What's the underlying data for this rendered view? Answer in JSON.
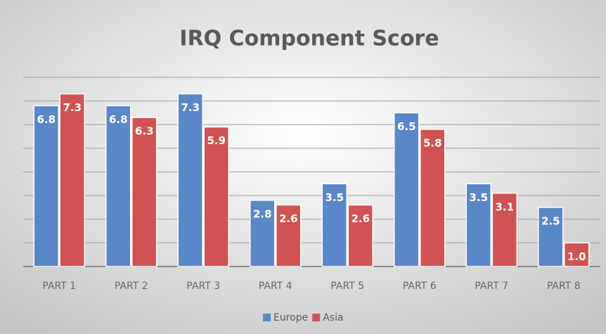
{
  "chart_data": {
    "type": "bar",
    "title": "IRQ  Component Score",
    "categories": [
      "PART 1",
      "PART 2",
      "PART 3",
      "PART 4",
      "PART 5",
      "PART 6",
      "PART 7",
      "PART 8"
    ],
    "series": [
      {
        "name": "Europe",
        "color": "#5a87c8",
        "values": [
          6.8,
          6.8,
          7.3,
          2.8,
          3.5,
          6.5,
          3.5,
          2.5
        ],
        "value_labels": [
          "6.8",
          "6.8",
          "7.3",
          "2.8",
          "3.5",
          "6.5",
          "3.5",
          "2.5"
        ]
      },
      {
        "name": "Asia",
        "color": "#d05252",
        "values": [
          7.3,
          6.3,
          5.9,
          2.6,
          2.6,
          5.8,
          3.1,
          1.0
        ],
        "value_labels": [
          "7.3",
          "6.3",
          "5.9",
          "2.6",
          "2.6",
          "5.8",
          "3.1",
          "1.0"
        ]
      }
    ],
    "ylim": [
      0,
      8
    ],
    "yticks": [
      0,
      1,
      2,
      3,
      4,
      5,
      6,
      7,
      8
    ],
    "grid": true,
    "legend": "bottom"
  }
}
